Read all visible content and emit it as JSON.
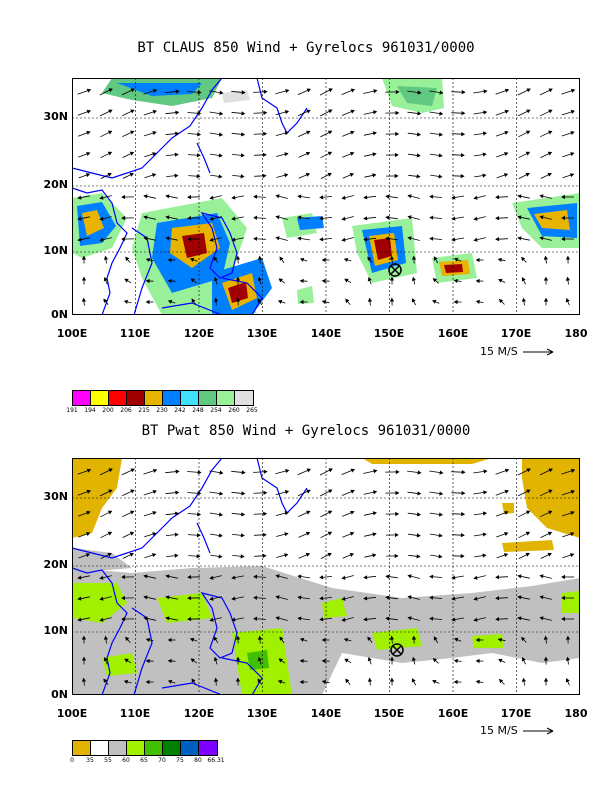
{
  "panels": [
    {
      "title": "BT CLAUS 850 Wind + Gyrelocs 961031/0000",
      "yticks": [
        "30N",
        "20N",
        "10N",
        "0N"
      ],
      "xticks": [
        "100E",
        "110E",
        "120E",
        "130E",
        "140E",
        "150E",
        "160E",
        "170E",
        "180"
      ],
      "vector_ref": "15 M/S",
      "legend": {
        "labels": [
          "191",
          "194",
          "200",
          "206",
          "215",
          "230",
          "242",
          "248",
          "254",
          "260",
          "265"
        ],
        "colors": [
          "#ff00ff",
          "#ffff00",
          "#ff0000",
          "#a00000",
          "#e8b400",
          "#0080ff",
          "#40e0ff",
          "#60c880",
          "#98f098",
          "#e0e0e0"
        ]
      }
    },
    {
      "title": "BT Pwat 850 Wind + Gyrelocs 961031/0000",
      "yticks": [
        "30N",
        "20N",
        "10N",
        "0N"
      ],
      "xticks": [
        "100E",
        "110E",
        "120E",
        "130E",
        "140E",
        "150E",
        "160E",
        "170E",
        "180"
      ],
      "vector_ref": "15 M/S",
      "legend": {
        "labels": [
          "0",
          "35",
          "55",
          "60",
          "65",
          "70",
          "75",
          "80",
          "66.31"
        ],
        "colors": [
          "#e0b400",
          "#ffffff",
          "#c0c0c0",
          "#a0f000",
          "#40c000",
          "#008000",
          "#0060c0",
          "#8000ff"
        ]
      }
    }
  ]
}
